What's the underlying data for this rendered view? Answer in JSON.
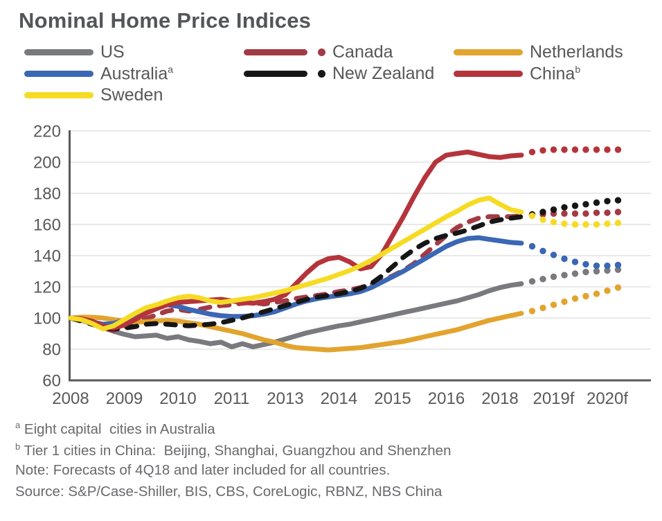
{
  "title": "Nominal Home Price Indices",
  "colors": {
    "us": "#797A7D",
    "canada": "#A23B45",
    "netherlands": "#E2A42E",
    "australia": "#3B67B4",
    "new_zealand": "#161616",
    "china": "#B5343B",
    "sweden": "#F6DB25",
    "axis": "#58595B",
    "gridline": "#DCDCDC",
    "title_text": "#535559",
    "footnote_text": "#68696C"
  },
  "legend": {
    "columns": [
      [
        {
          "label": "US",
          "sup": "",
          "series": "US"
        },
        {
          "label": "Australia",
          "sup": "a",
          "series": "Australia"
        },
        {
          "label": "Sweden",
          "sup": "",
          "series": "Sweden"
        }
      ],
      [
        {
          "label": "Canada",
          "sup": "",
          "series": "Canada"
        },
        {
          "label": "New Zealand",
          "sup": "",
          "series": "New Zealand"
        }
      ],
      [
        {
          "label": "Netherlands",
          "sup": "",
          "series": "Netherlands"
        },
        {
          "label": "China",
          "sup": "b",
          "series": "China"
        }
      ]
    ]
  },
  "chart_data": {
    "type": "line",
    "frequency": "quarterly",
    "x_start": "1Q08",
    "x_end": "4Q20",
    "x_tick_labels": [
      "2008",
      "2009",
      "2010",
      "2011",
      "2013",
      "2014",
      "2015",
      "2016",
      "2018",
      "2019f",
      "2020f"
    ],
    "y_ticks": [
      60,
      80,
      100,
      120,
      140,
      160,
      180,
      200,
      220
    ],
    "ylim": [
      60,
      220
    ],
    "grid": "horizontal",
    "forecast_start_index": 43,
    "forecast_note": "Values from 4Q18 onward are forecasts drawn as dots",
    "series": [
      {
        "name": "US",
        "color": "#797A7D",
        "dash": false,
        "values": [
          100,
          98.5,
          96.5,
          94,
          91.5,
          89.5,
          88,
          88.5,
          89,
          87,
          88,
          86,
          85,
          83.5,
          84.5,
          81.5,
          83.5,
          81.5,
          83,
          84.5,
          86.5,
          88.5,
          90.5,
          92,
          93.5,
          95,
          96,
          97.5,
          99,
          100.5,
          102,
          103.5,
          105,
          106.5,
          108,
          109.5,
          111,
          113,
          115,
          117.5,
          119.5,
          121,
          122,
          123.5,
          125,
          126.5,
          127.5,
          128.5,
          129.5,
          130,
          130.5,
          131
        ]
      },
      {
        "name": "Canada",
        "color": "#A23B45",
        "dash": true,
        "values": [
          100,
          99,
          97,
          93.5,
          92,
          94,
          96.5,
          99.5,
          102,
          104.5,
          105.5,
          104.5,
          105.5,
          107,
          108,
          108.5,
          109.5,
          110,
          109,
          110,
          111,
          112.5,
          113.5,
          114.5,
          115.5,
          117,
          118,
          119.5,
          121.5,
          124,
          127,
          130.5,
          135,
          141,
          147,
          153,
          158,
          161.5,
          164,
          165,
          165,
          165,
          165.5,
          166,
          166.5,
          167,
          167,
          167,
          167,
          167.5,
          167.5,
          168
        ]
      },
      {
        "name": "Netherlands",
        "color": "#E2A42E",
        "dash": false,
        "values": [
          100,
          100.5,
          100.5,
          100,
          99,
          98,
          97.5,
          97.5,
          98,
          98.5,
          98,
          97,
          96,
          94.5,
          93,
          91.5,
          90,
          88,
          86,
          84.5,
          82.5,
          81,
          80.5,
          80,
          79.5,
          80,
          80.5,
          81,
          82,
          83,
          84,
          85,
          86.5,
          88,
          89.5,
          91,
          92.5,
          94.5,
          96.5,
          98.5,
          100,
          101.5,
          103,
          104.5,
          106.5,
          108.5,
          110.5,
          112.5,
          114,
          115.5,
          117.5,
          119.5
        ]
      },
      {
        "name": "Australia",
        "color": "#3B67B4",
        "dash": false,
        "values": [
          100,
          99,
          97.5,
          96,
          96.5,
          98.5,
          101.5,
          104.5,
          107,
          108.5,
          107.5,
          105.5,
          104,
          102.5,
          101.5,
          101,
          101,
          101.5,
          102.5,
          104,
          106.5,
          109,
          111,
          112.5,
          113.5,
          114.5,
          115.5,
          117,
          119.5,
          123,
          126.5,
          130,
          134,
          138,
          142,
          146,
          149,
          151,
          151.5,
          150.5,
          149.5,
          148.5,
          148,
          146,
          143,
          140.5,
          138,
          136,
          134.5,
          133.5,
          133.5,
          134
        ]
      },
      {
        "name": "New Zealand",
        "color": "#161616",
        "dash": true,
        "values": [
          100,
          98,
          96,
          94,
          93,
          93.5,
          94.5,
          96,
          96.5,
          96,
          95.5,
          95,
          95.5,
          96,
          97,
          98.5,
          100,
          102,
          104,
          106,
          108,
          110,
          112,
          113.5,
          114.5,
          115.5,
          117,
          119,
          122,
          127,
          133,
          139,
          144,
          148,
          151,
          153,
          154.5,
          156.5,
          159,
          161.5,
          163,
          164,
          165,
          166.5,
          168,
          169.5,
          171,
          172,
          173,
          174,
          175,
          175.5
        ]
      },
      {
        "name": "China",
        "color": "#B5343B",
        "dash": false,
        "values": [
          100,
          99.5,
          98,
          95,
          93.5,
          95.5,
          99,
          103,
          106,
          108.5,
          110,
          110.5,
          111,
          111.5,
          112,
          111,
          110,
          109.5,
          110.5,
          112,
          115,
          122,
          129,
          135,
          138,
          139,
          136,
          131.5,
          133,
          141,
          153,
          165,
          178,
          190,
          200,
          204.5,
          205.5,
          206.5,
          205,
          203.5,
          203,
          204,
          204.5,
          206.5,
          207.5,
          208,
          208,
          208,
          208,
          208,
          208,
          208
        ]
      },
      {
        "name": "Sweden",
        "color": "#F6DB25",
        "dash": false,
        "values": [
          100,
          99,
          96.5,
          93,
          95,
          99,
          103,
          106.5,
          108.5,
          111,
          113,
          114,
          113,
          111,
          110,
          111,
          112,
          113,
          114.5,
          116,
          117.5,
          119.5,
          121.5,
          123.5,
          125.5,
          128,
          130.5,
          133.5,
          137,
          141,
          145,
          149,
          153,
          157,
          161,
          165,
          168.5,
          172.5,
          175.5,
          177,
          173,
          169.5,
          168,
          165.5,
          163,
          161.5,
          160.5,
          160,
          160,
          160,
          160.5,
          161
        ]
      }
    ]
  },
  "footnotes": [
    {
      "sup": "a",
      "text": " Eight capital  cities in Australia"
    },
    {
      "sup": "b",
      "text": " Tier 1 cities in China:  Beijing, Shanghai, Guangzhou and Shenzhen"
    },
    {
      "sup": "",
      "text": "Note: Forecasts of 4Q18 and later included for all countries."
    },
    {
      "sup": "",
      "text": "Source: S&P/Case-Shiller, BIS, CBS, CoreLogic, RBNZ, NBS China"
    }
  ]
}
